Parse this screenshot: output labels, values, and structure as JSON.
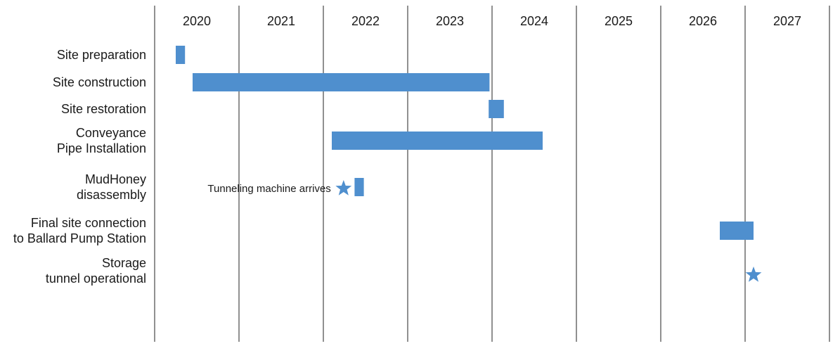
{
  "chart_data": {
    "type": "gantt",
    "title": "",
    "years": [
      "2020",
      "2021",
      "2022",
      "2023",
      "2024",
      "2025",
      "2026",
      "2027"
    ],
    "tasks": [
      {
        "id": "site-preparation",
        "lines": [
          "Site preparation"
        ],
        "start": 2020.25,
        "end": 2020.36
      },
      {
        "id": "site-construction",
        "lines": [
          "Site construction"
        ],
        "start": 2020.45,
        "end": 2023.97
      },
      {
        "id": "site-restoration",
        "lines": [
          "Site restoration"
        ],
        "start": 2023.96,
        "end": 2024.14
      },
      {
        "id": "conveyance-pipe-installation",
        "lines": [
          "Conveyance",
          "Pipe Installation"
        ],
        "start": 2022.1,
        "end": 2024.6
      },
      {
        "id": "mudhoney-disassembly",
        "lines": [
          "MudHoney",
          "disassembly"
        ],
        "start": 2022.37,
        "end": 2022.48
      },
      {
        "id": "final-site-connection",
        "lines": [
          "Final site connection",
          "to Ballard Pump Station"
        ],
        "start": 2026.7,
        "end": 2027.1
      },
      {
        "id": "storage-tunnel-operational",
        "lines": [
          "Storage",
          "tunnel operational"
        ],
        "milestone": 2027.1
      }
    ],
    "annotations": [
      {
        "text": "Tunneling machine arrives",
        "milestone": 2022.24,
        "task_row": "mudhoney-disassembly"
      }
    ],
    "colors": {
      "bar": "#4f8fce",
      "gridline": "#222222",
      "text": "#1a1a1a"
    }
  }
}
